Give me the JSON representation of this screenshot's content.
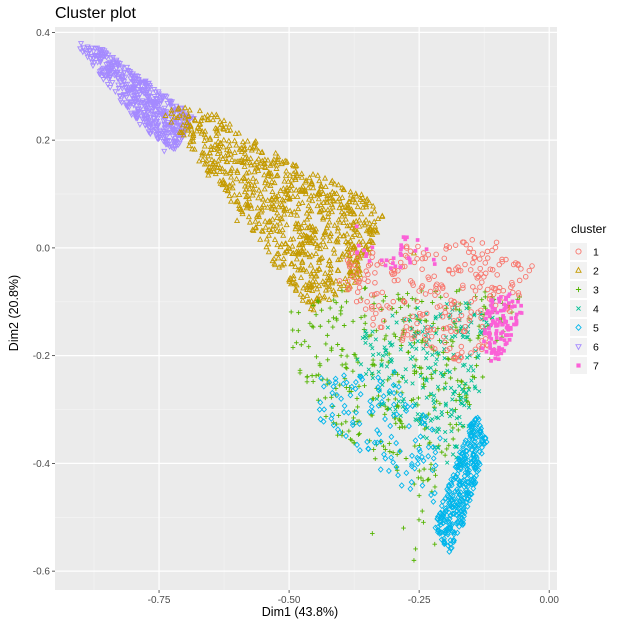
{
  "chart_data": {
    "type": "scatter",
    "title": "Cluster plot",
    "xlabel": "Dim1 (43.8%)",
    "ylabel": "Dim2 (20.8%)",
    "xlim": [
      -0.95,
      0.015
    ],
    "ylim": [
      -0.635,
      0.41
    ],
    "xticks": [
      -0.75,
      -0.5,
      -0.25,
      0.0
    ],
    "xtick_labels": [
      "-0.75",
      "-0.50",
      "-0.25",
      "0.00"
    ],
    "yticks": [
      0.4,
      0.2,
      0.0,
      -0.2,
      -0.4,
      -0.6
    ],
    "ytick_labels": [
      "0.4",
      "0.2",
      "0.0",
      "-0.2",
      "-0.4",
      "-0.6"
    ],
    "grid": true,
    "legend_position": "right",
    "legend_title": "cluster",
    "series": [
      {
        "name": "1",
        "marker": "circle",
        "color": "#F8766D",
        "regions": [
          {
            "poly": [
              [
                -0.4,
                -0.02
              ],
              [
                -0.2,
                0.02
              ],
              [
                -0.08,
                0.01
              ],
              [
                -0.03,
                -0.03
              ],
              [
                -0.12,
                -0.22
              ],
              [
                -0.22,
                -0.2
              ],
              [
                -0.35,
                -0.14
              ],
              [
                -0.42,
                -0.06
              ]
            ],
            "n": 260
          }
        ],
        "points": [
          [
            -0.38,
            -0.01
          ],
          [
            -0.3,
            -0.04
          ],
          [
            -0.25,
            -0.08
          ],
          [
            -0.2,
            -0.12
          ],
          [
            -0.15,
            -0.1
          ],
          [
            -0.1,
            -0.05
          ],
          [
            -0.06,
            -0.03
          ],
          [
            -0.12,
            -0.18
          ],
          [
            -0.28,
            -0.16
          ],
          [
            -0.35,
            -0.1
          ]
        ]
      },
      {
        "name": "2",
        "marker": "triangle",
        "color": "#C49A00",
        "regions": [
          {
            "poly": [
              [
                -0.75,
                0.26
              ],
              [
                -0.66,
                0.26
              ],
              [
                -0.5,
                0.16
              ],
              [
                -0.36,
                0.1
              ],
              [
                -0.32,
                0.06
              ],
              [
                -0.36,
                -0.06
              ],
              [
                -0.45,
                -0.12
              ],
              [
                -0.5,
                -0.08
              ],
              [
                -0.56,
                0.02
              ],
              [
                -0.66,
                0.14
              ],
              [
                -0.72,
                0.22
              ]
            ],
            "n": 850
          }
        ],
        "points": [
          [
            -0.7,
            0.22
          ],
          [
            -0.62,
            0.16
          ],
          [
            -0.55,
            0.09
          ],
          [
            -0.48,
            0.03
          ],
          [
            -0.42,
            -0.04
          ],
          [
            -0.5,
            -0.06
          ],
          [
            -0.6,
            0.05
          ],
          [
            -0.4,
            0.08
          ],
          [
            -0.35,
            0.09
          ],
          [
            -0.26,
            -0.01
          ]
        ]
      },
      {
        "name": "3",
        "marker": "plus",
        "color": "#53B400",
        "regions": [
          {
            "poly": [
              [
                -0.5,
                -0.12
              ],
              [
                -0.35,
                -0.06
              ],
              [
                -0.15,
                -0.08
              ],
              [
                -0.05,
                -0.08
              ],
              [
                -0.22,
                -0.45
              ],
              [
                -0.27,
                -0.6
              ],
              [
                -0.24,
                -0.45
              ],
              [
                -0.4,
                -0.36
              ],
              [
                -0.5,
                -0.2
              ]
            ],
            "n": 380
          }
        ],
        "points": [
          [
            -0.46,
            -0.14
          ],
          [
            -0.4,
            -0.2
          ],
          [
            -0.34,
            -0.28
          ],
          [
            -0.3,
            -0.38
          ],
          [
            -0.25,
            -0.46
          ],
          [
            -0.22,
            -0.55
          ],
          [
            -0.26,
            -0.58
          ],
          [
            -0.34,
            -0.53
          ],
          [
            -0.28,
            -0.52
          ],
          [
            -0.18,
            -0.3
          ]
        ]
      },
      {
        "name": "4",
        "marker": "x",
        "color": "#00C094",
        "regions": [
          {
            "poly": [
              [
                -0.38,
                -0.16
              ],
              [
                -0.25,
                -0.1
              ],
              [
                -0.1,
                -0.1
              ],
              [
                -0.14,
                -0.3
              ],
              [
                -0.18,
                -0.42
              ],
              [
                -0.26,
                -0.34
              ],
              [
                -0.36,
                -0.26
              ]
            ],
            "n": 240
          }
        ],
        "points": [
          [
            -0.32,
            -0.2
          ],
          [
            -0.26,
            -0.22
          ],
          [
            -0.2,
            -0.26
          ],
          [
            -0.15,
            -0.34
          ],
          [
            -0.17,
            -0.4
          ],
          [
            -0.22,
            -0.3
          ]
        ]
      },
      {
        "name": "5",
        "marker": "diamond",
        "color": "#00B6EB",
        "regions": [
          {
            "poly": [
              [
                -0.2,
                -0.45
              ],
              [
                -0.14,
                -0.3
              ],
              [
                -0.12,
                -0.36
              ],
              [
                -0.16,
                -0.5
              ],
              [
                -0.19,
                -0.57
              ],
              [
                -0.22,
                -0.52
              ]
            ],
            "n": 320
          },
          {
            "poly": [
              [
                -0.45,
                -0.24
              ],
              [
                -0.3,
                -0.22
              ],
              [
                -0.2,
                -0.35
              ],
              [
                -0.22,
                -0.48
              ],
              [
                -0.32,
                -0.42
              ],
              [
                -0.44,
                -0.32
              ]
            ],
            "n": 120
          }
        ],
        "points": [
          [
            -0.19,
            -0.55
          ],
          [
            -0.17,
            -0.5
          ],
          [
            -0.2,
            -0.53
          ],
          [
            -0.16,
            -0.45
          ],
          [
            -0.15,
            -0.4
          ],
          [
            -0.13,
            -0.35
          ],
          [
            -0.35,
            -0.36
          ],
          [
            -0.4,
            -0.28
          ]
        ]
      },
      {
        "name": "6",
        "marker": "triangle-down",
        "color": "#A58AFF",
        "regions": [
          {
            "poly": [
              [
                -0.91,
                0.38
              ],
              [
                -0.86,
                0.37
              ],
              [
                -0.76,
                0.3
              ],
              [
                -0.68,
                0.24
              ],
              [
                -0.72,
                0.18
              ],
              [
                -0.78,
                0.22
              ],
              [
                -0.88,
                0.34
              ]
            ],
            "n": 520
          }
        ],
        "points": [
          [
            -0.9,
            0.38
          ],
          [
            -0.84,
            0.34
          ],
          [
            -0.8,
            0.3
          ],
          [
            -0.76,
            0.26
          ],
          [
            -0.72,
            0.22
          ],
          [
            -0.74,
            0.18
          ]
        ]
      },
      {
        "name": "7",
        "marker": "square",
        "color": "#FB61D7",
        "regions": [
          {
            "poly": [
              [
                -0.12,
                -0.1
              ],
              [
                -0.06,
                -0.08
              ],
              [
                -0.05,
                -0.12
              ],
              [
                -0.1,
                -0.22
              ],
              [
                -0.13,
                -0.2
              ]
            ],
            "n": 110
          },
          {
            "poly": [
              [
                -0.38,
                0.02
              ],
              [
                -0.26,
                0.02
              ],
              [
                -0.2,
                -0.02
              ],
              [
                -0.3,
                -0.04
              ],
              [
                -0.37,
                -0.02
              ]
            ],
            "n": 30
          }
        ],
        "points": [
          [
            -0.37,
            0.04
          ],
          [
            -0.28,
            0.02
          ],
          [
            -0.22,
            -0.03
          ],
          [
            -0.1,
            -0.12
          ],
          [
            -0.08,
            -0.15
          ],
          [
            -0.06,
            -0.1
          ]
        ]
      }
    ]
  }
}
